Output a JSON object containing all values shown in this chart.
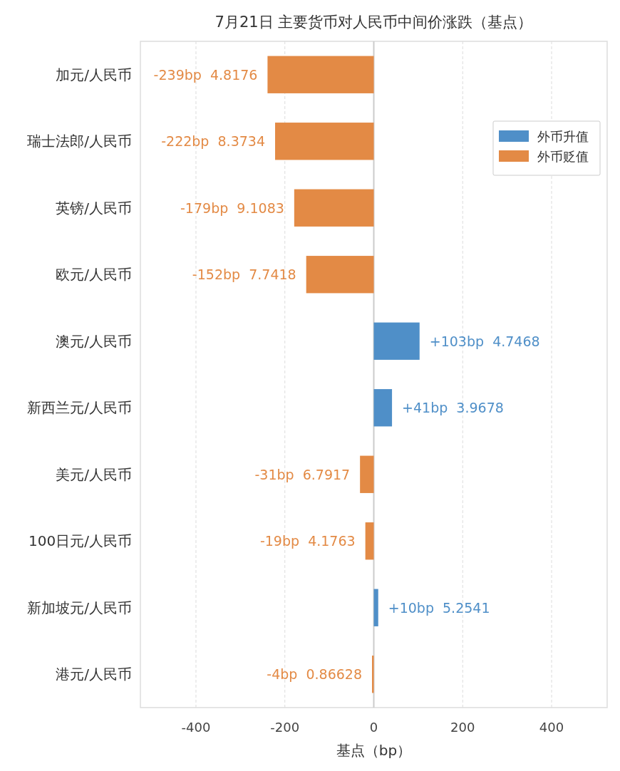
{
  "chart_data": {
    "type": "bar",
    "orientation": "horizontal",
    "title": "7月21日 主要货币对人民币中间价涨跌（基点）",
    "xlabel": "基点（bp）",
    "categories": [
      "加元/人民币",
      "瑞士法郎/人民币",
      "英镑/人民币",
      "欧元/人民币",
      "澳元/人民币",
      "新西兰元/人民币",
      "美元/人民币",
      "100日元/人民币",
      "新加坡元/人民币",
      "港元/人民币"
    ],
    "series": [
      {
        "name": "外币升值",
        "color": "#4f8fc8",
        "values": [
          null,
          null,
          null,
          null,
          103,
          41,
          null,
          null,
          10,
          null
        ],
        "value_labels": [
          null,
          null,
          null,
          null,
          "+103bp  4.7468",
          "+41bp  3.9678",
          null,
          null,
          "+10bp  5.2541",
          null
        ]
      },
      {
        "name": "外币贬值",
        "color": "#e38a45",
        "values": [
          -239,
          -222,
          -179,
          -152,
          null,
          null,
          -31,
          -19,
          null,
          -4
        ],
        "value_labels": [
          "-239bp  4.8176",
          "-222bp  8.3734",
          "-179bp  9.1083",
          "-152bp  7.7418",
          null,
          null,
          "-31bp  6.7917",
          "-19bp  4.1763",
          null,
          "-4bp  0.86628"
        ]
      }
    ],
    "xlim": [
      -525,
      525
    ],
    "xticks": [
      -400,
      -200,
      0,
      200,
      400
    ],
    "grid": "x",
    "legend": "top right"
  }
}
